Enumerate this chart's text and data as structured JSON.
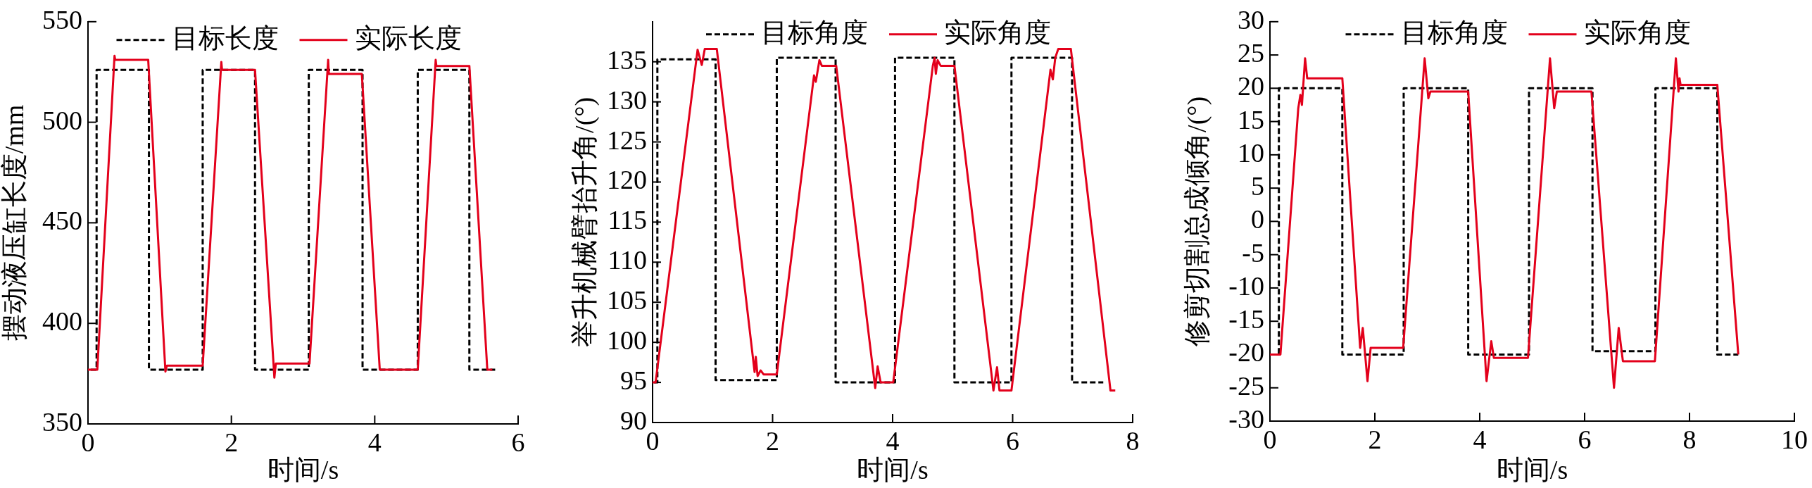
{
  "chart_data": [
    {
      "type": "line",
      "xlabel": "时间/s",
      "ylabel": "摆动液压缸长度/mm",
      "xlim": [
        0,
        6
      ],
      "xticks": [
        0,
        2,
        4,
        6
      ],
      "ylim": [
        350,
        550
      ],
      "yticks": [
        350,
        400,
        450,
        500,
        550
      ],
      "legend": "top",
      "series": [
        {
          "name": "目标长度",
          "color": "#000000",
          "line_style": "dashed",
          "x": [
            0,
            0.12,
            0.12,
            0.85,
            0.85,
            1.6,
            1.6,
            2.33,
            2.33,
            3.08,
            3.08,
            3.83,
            3.83,
            4.6,
            4.6,
            5.32,
            5.32,
            5.68
          ],
          "values": [
            377,
            377,
            526,
            526,
            377,
            377,
            526,
            526,
            377,
            377,
            526,
            526,
            377,
            377,
            526,
            526,
            377,
            377
          ]
        },
        {
          "name": "实际长度",
          "color": "#e3001b",
          "line_style": "solid",
          "x": [
            0,
            0.13,
            0.37,
            0.38,
            0.84,
            1.08,
            1.1,
            1.6,
            1.86,
            1.87,
            2.33,
            2.6,
            2.62,
            3.09,
            3.35,
            3.36,
            3.82,
            4.07,
            4.6,
            4.85,
            4.86,
            5.32,
            5.57,
            5.64
          ],
          "values": [
            377,
            377,
            533,
            531,
            531,
            376,
            379,
            379,
            530,
            526,
            526,
            373,
            380,
            380,
            531,
            524,
            524,
            377,
            377,
            531,
            528,
            528,
            377,
            377
          ]
        }
      ]
    },
    {
      "type": "line",
      "xlabel": "时间/s",
      "ylabel": "举升机械臂抬升角/(°)",
      "xlim": [
        0,
        8
      ],
      "xticks": [
        0,
        2,
        4,
        6,
        8
      ],
      "ylim": [
        90,
        140
      ],
      "yticks": [
        90,
        95,
        100,
        105,
        110,
        115,
        120,
        125,
        130,
        135
      ],
      "legend": "top",
      "series": [
        {
          "name": "目标角度",
          "color": "#000000",
          "line_style": "dashed",
          "x": [
            0,
            0.08,
            0.08,
            1.05,
            1.05,
            2.07,
            2.07,
            3.05,
            3.05,
            4.04,
            4.04,
            5.03,
            5.03,
            5.98,
            5.98,
            6.99,
            6.99,
            7.51
          ],
          "values": [
            95,
            95,
            135.3,
            135.3,
            95.3,
            95.3,
            135.5,
            135.5,
            95,
            95,
            135.5,
            135.5,
            95,
            95,
            135.5,
            135.5,
            95,
            95
          ]
        },
        {
          "name": "实际角度",
          "color": "#e3001b",
          "line_style": "solid",
          "x": [
            0,
            0.05,
            0.75,
            0.82,
            0.87,
            1.07,
            1.7,
            1.72,
            1.75,
            1.8,
            1.85,
            2.07,
            2.69,
            2.72,
            2.78,
            2.82,
            3.06,
            3.71,
            3.75,
            3.8,
            4.01,
            4.67,
            4.7,
            4.72,
            4.75,
            4.8,
            5.03,
            5.68,
            5.74,
            5.78,
            5.98,
            6.63,
            6.67,
            6.71,
            6.76,
            6.97,
            7.63,
            7.71
          ],
          "values": [
            95,
            95,
            136.5,
            134.6,
            136.6,
            136.6,
            96.3,
            98.2,
            95.8,
            96.5,
            96,
            96,
            133.3,
            132.5,
            135.2,
            134.5,
            134.5,
            94.3,
            97,
            95,
            95,
            134.5,
            135.5,
            133.5,
            135.2,
            134.5,
            134.5,
            94,
            96.9,
            94,
            94,
            134,
            132.8,
            135.5,
            136.6,
            136.6,
            94,
            94
          ]
        }
      ]
    },
    {
      "type": "line",
      "xlabel": "时间/s",
      "ylabel": "修剪切割总成倾角/(°)",
      "xlim": [
        0,
        10
      ],
      "xticks": [
        0,
        2,
        4,
        6,
        8,
        10
      ],
      "ylim": [
        -30,
        30
      ],
      "yticks": [
        -30,
        -25,
        -20,
        -15,
        -10,
        -5,
        0,
        5,
        10,
        15,
        20,
        25,
        30
      ],
      "legend": "top",
      "series": [
        {
          "name": "目标角度",
          "color": "#000000",
          "line_style": "dashed",
          "x": [
            0,
            0.17,
            0.17,
            1.38,
            1.38,
            2.55,
            2.55,
            3.78,
            3.78,
            4.94,
            4.94,
            6.15,
            6.15,
            7.35,
            7.35,
            8.53,
            8.53,
            8.93
          ],
          "values": [
            -20,
            -20,
            20,
            20,
            -20,
            -20,
            20,
            20,
            -20,
            -20,
            20,
            20,
            -19.5,
            -19.5,
            20,
            20,
            -20,
            -20
          ]
        },
        {
          "name": "实际角度",
          "color": "#e3001b",
          "line_style": "solid",
          "x": [
            0,
            0.2,
            0.54,
            0.58,
            0.61,
            0.67,
            0.71,
            1.38,
            1.72,
            1.77,
            1.86,
            1.92,
            2.54,
            2.95,
            3.02,
            3.06,
            3.78,
            4.13,
            4.22,
            4.27,
            4.92,
            5.34,
            5.42,
            5.47,
            6.13,
            6.56,
            6.65,
            6.73,
            7.34,
            7.74,
            7.79,
            7.81,
            7.83,
            8.53,
            8.93
          ],
          "values": [
            -20,
            -20,
            17,
            19,
            17.5,
            24.5,
            21.5,
            21.5,
            -19,
            -16,
            -24,
            -19,
            -19,
            24.5,
            18.5,
            19.5,
            19.5,
            -24,
            -18,
            -20.5,
            -20.5,
            24.5,
            17,
            19.5,
            19.5,
            -25,
            -16,
            -21,
            -21,
            24.5,
            19.5,
            21.5,
            20.5,
            20.5,
            -20
          ]
        }
      ]
    }
  ]
}
